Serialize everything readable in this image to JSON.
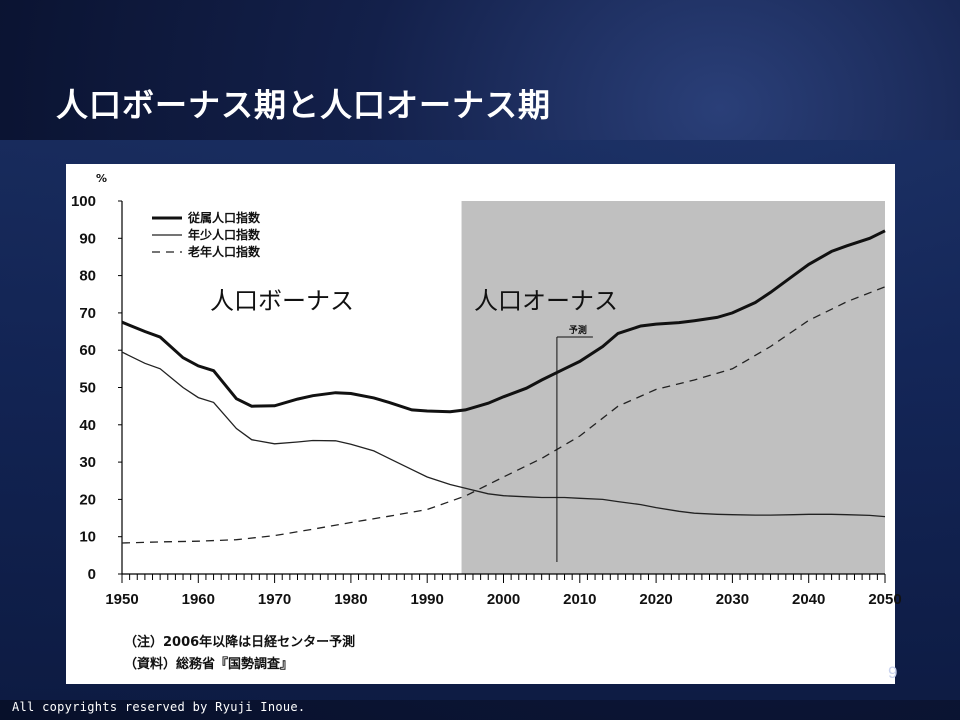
{
  "slide": {
    "title": "人口ボーナス期と人口オーナス期",
    "page_number": "9",
    "copyright": "All copyrights reserved by Ryuji Inoue."
  },
  "chart_data": {
    "type": "line",
    "ylabel": "%",
    "ylim": [
      0,
      100
    ],
    "xlim": [
      1950,
      2050
    ],
    "yticks": [
      0,
      10,
      20,
      30,
      40,
      50,
      60,
      70,
      80,
      90,
      100
    ],
    "xticks": [
      1950,
      1960,
      1970,
      1980,
      1990,
      2000,
      2010,
      2020,
      2030,
      2040,
      2050
    ],
    "legend_position": "top-left",
    "series": [
      {
        "name": "従属人口指数",
        "style": "bold-solid",
        "x": [
          1950,
          1953,
          1955,
          1958,
          1960,
          1962,
          1965,
          1967,
          1970,
          1973,
          1975,
          1978,
          1980,
          1983,
          1985,
          1988,
          1990,
          1993,
          1995,
          1998,
          2000,
          2003,
          2005,
          2008,
          2010,
          2013,
          2015,
          2018,
          2020,
          2023,
          2025,
          2028,
          2030,
          2033,
          2035,
          2038,
          2040,
          2043,
          2045,
          2048,
          2050
        ],
        "values": [
          67.5,
          65,
          63.5,
          58,
          55.8,
          54.5,
          47,
          45,
          45.1,
          46.9,
          47.8,
          48.6,
          48.4,
          47.2,
          46,
          44,
          43.7,
          43.5,
          44,
          45.8,
          47.5,
          49.8,
          52,
          55,
          57,
          61,
          64.5,
          66.5,
          67,
          67.4,
          67.9,
          68.8,
          70,
          72.8,
          75.5,
          80,
          83,
          86.5,
          88,
          90,
          92
        ]
      },
      {
        "name": "年少人口指数",
        "style": "thin-solid",
        "x": [
          1950,
          1953,
          1955,
          1958,
          1960,
          1962,
          1965,
          1967,
          1970,
          1973,
          1975,
          1978,
          1980,
          1983,
          1985,
          1988,
          1990,
          1993,
          1995,
          1998,
          2000,
          2003,
          2005,
          2008,
          2010,
          2013,
          2015,
          2018,
          2020,
          2023,
          2025,
          2028,
          2030,
          2033,
          2035,
          2038,
          2040,
          2043,
          2045,
          2048,
          2050
        ],
        "values": [
          59.5,
          56.5,
          55,
          50,
          47.3,
          46,
          39,
          36,
          34.9,
          35.4,
          35.8,
          35.7,
          34.8,
          33,
          31,
          28,
          26,
          24,
          23,
          21.5,
          21,
          20.7,
          20.5,
          20.5,
          20.3,
          20,
          19.4,
          18.6,
          17.8,
          16.8,
          16.3,
          16,
          15.9,
          15.8,
          15.8,
          15.9,
          16,
          16,
          15.9,
          15.7,
          15.4
        ]
      },
      {
        "name": "老年人口指数",
        "style": "dashed",
        "x": [
          1950,
          1955,
          1960,
          1965,
          1970,
          1975,
          1980,
          1985,
          1990,
          1995,
          2000,
          2005,
          2010,
          2015,
          2020,
          2025,
          2030,
          2035,
          2040,
          2045,
          2050
        ],
        "values": [
          8.3,
          8.6,
          8.8,
          9.2,
          10.3,
          12,
          13.8,
          15.5,
          17.3,
          20.9,
          26,
          31,
          37,
          45,
          49.5,
          52,
          55,
          61,
          68,
          73,
          77
        ]
      }
    ],
    "annotations": [
      {
        "text": "人口ボーナス",
        "region": "1950-1994"
      },
      {
        "text": "人口オーナス",
        "region": "1994-2050 (shaded)"
      },
      {
        "text": "予測",
        "marker_year": 2007
      }
    ],
    "notes": [
      "（注）2006年以降は日経センター予測",
      "（資料）総務省『国勢調査』"
    ]
  }
}
